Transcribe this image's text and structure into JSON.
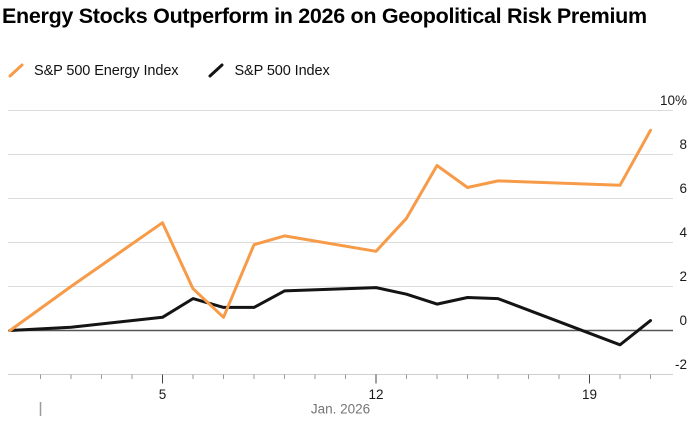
{
  "title": "Energy Stocks Outperform in 2026 on Geopolitical Risk Premium",
  "chart_data": {
    "type": "line",
    "title": "Energy Stocks Outperform in 2026 on Geopolitical Risk Premium",
    "legend_position": "top-left",
    "grid": "horizontal",
    "x_axis": {
      "month_label": "Jan. 2026",
      "major_tick_days": [
        5,
        12,
        19
      ],
      "major_tick_labels": [
        "5",
        "12",
        "19"
      ],
      "minor_tick_first_day": 1,
      "minor_tick_last_day": 21
    },
    "y_axis": {
      "unit": "%",
      "tick_labels": [
        "10%",
        "8",
        "6",
        "4",
        "2",
        "0",
        "-2"
      ],
      "tick_values": [
        10,
        8,
        6,
        4,
        2,
        0,
        -2
      ],
      "range": [
        -2,
        10
      ]
    },
    "series": [
      {
        "name": "S&P 500 Energy Index",
        "color": "#F79B48",
        "points": [
          {
            "date": "Dec 31",
            "value": 0.0
          },
          {
            "date": "Jan 2",
            "value": 2.0
          },
          {
            "date": "Jan 5",
            "value": 4.9
          },
          {
            "date": "Jan 6",
            "value": 1.9
          },
          {
            "date": "Jan 7",
            "value": 0.6
          },
          {
            "date": "Jan 8",
            "value": 3.9
          },
          {
            "date": "Jan 9",
            "value": 4.3
          },
          {
            "date": "Jan 12",
            "value": 3.6
          },
          {
            "date": "Jan 13",
            "value": 5.1
          },
          {
            "date": "Jan 14",
            "value": 7.5
          },
          {
            "date": "Jan 15",
            "value": 6.5
          },
          {
            "date": "Jan 16",
            "value": 6.8
          },
          {
            "date": "Jan 20",
            "value": 6.6
          },
          {
            "date": "Jan 21",
            "value": 9.1
          }
        ]
      },
      {
        "name": "S&P 500 Index",
        "color": "#141414",
        "points": [
          {
            "date": "Dec 31",
            "value": 0.0
          },
          {
            "date": "Jan 2",
            "value": 0.15
          },
          {
            "date": "Jan 5",
            "value": 0.6
          },
          {
            "date": "Jan 6",
            "value": 1.45
          },
          {
            "date": "Jan 7",
            "value": 1.05
          },
          {
            "date": "Jan 8",
            "value": 1.05
          },
          {
            "date": "Jan 9",
            "value": 1.8
          },
          {
            "date": "Jan 12",
            "value": 1.95
          },
          {
            "date": "Jan 13",
            "value": 1.65
          },
          {
            "date": "Jan 14",
            "value": 1.2
          },
          {
            "date": "Jan 15",
            "value": 1.5
          },
          {
            "date": "Jan 16",
            "value": 1.45
          },
          {
            "date": "Jan 20",
            "value": -0.65
          },
          {
            "date": "Jan 21",
            "value": 0.45
          }
        ]
      }
    ],
    "colors": {
      "grid": "#DBDBDB",
      "bottom_axis": "#CFCFCF",
      "zero_line": "#555555",
      "minor_tick": "#9A9A9A",
      "major_tick": "#444444",
      "axis_label": "#1A1A1A",
      "month_label": "#767676",
      "background": "#FFFFFF"
    }
  }
}
